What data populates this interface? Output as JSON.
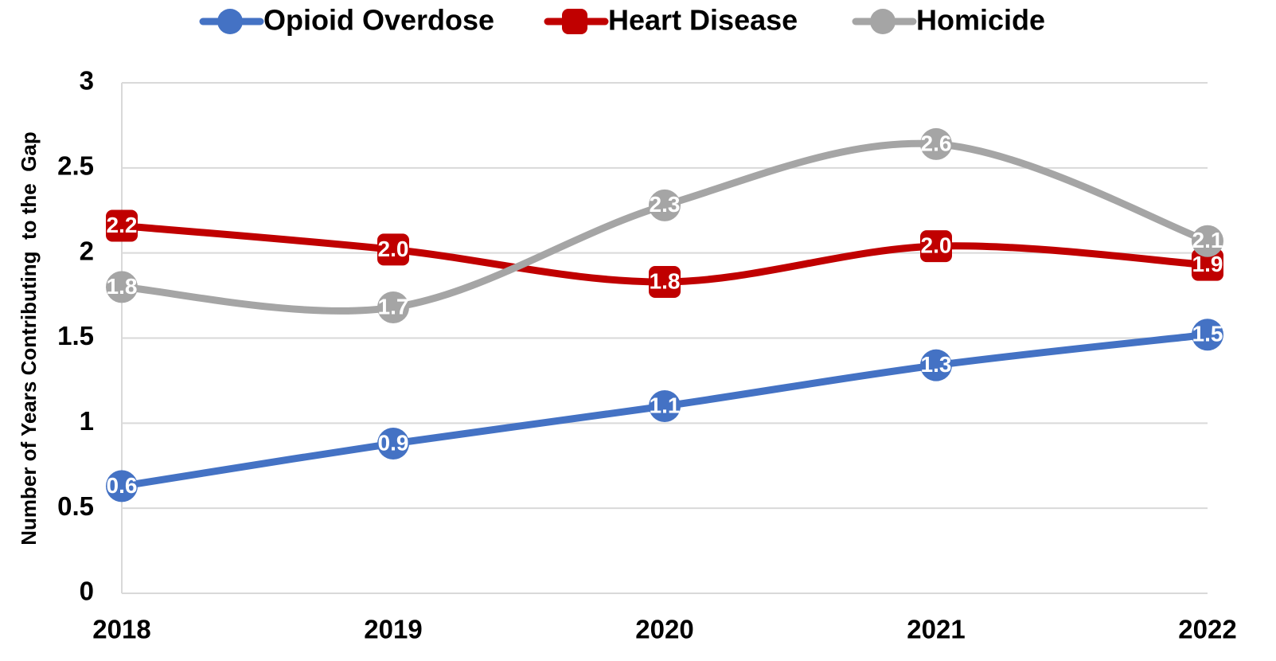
{
  "chart_data": {
    "type": "line",
    "y_axis_label": "Number of Years Contributing  to the  Gap",
    "categories": [
      "2018",
      "2019",
      "2020",
      "2021",
      "2022"
    ],
    "series": [
      {
        "name": "Opioid Overdose",
        "color": "#4472c4",
        "marker": "circle",
        "values": [
          0.63,
          0.88,
          1.1,
          1.34,
          1.52
        ],
        "value_labels": [
          "0.6",
          "0.9",
          "1.1",
          "1.3",
          "1.5"
        ]
      },
      {
        "name": "Heart Disease",
        "color": "#c00000",
        "marker": "square",
        "values": [
          2.16,
          2.02,
          1.83,
          2.04,
          1.93
        ],
        "value_labels": [
          "2.2",
          "2.0",
          "1.8",
          "2.0",
          "1.9"
        ]
      },
      {
        "name": "Homicide",
        "color": "#a5a5a5",
        "marker": "circle",
        "values": [
          1.8,
          1.68,
          2.28,
          2.64,
          2.07
        ],
        "value_labels": [
          "1.8",
          "1.7",
          "2.3",
          "2.6",
          "2.1"
        ]
      }
    ],
    "ylim": [
      0,
      3
    ],
    "yticks": [
      0,
      0.5,
      1,
      1.5,
      2,
      2.5,
      3
    ],
    "grid": true,
    "legend": "top",
    "smooth": true
  }
}
